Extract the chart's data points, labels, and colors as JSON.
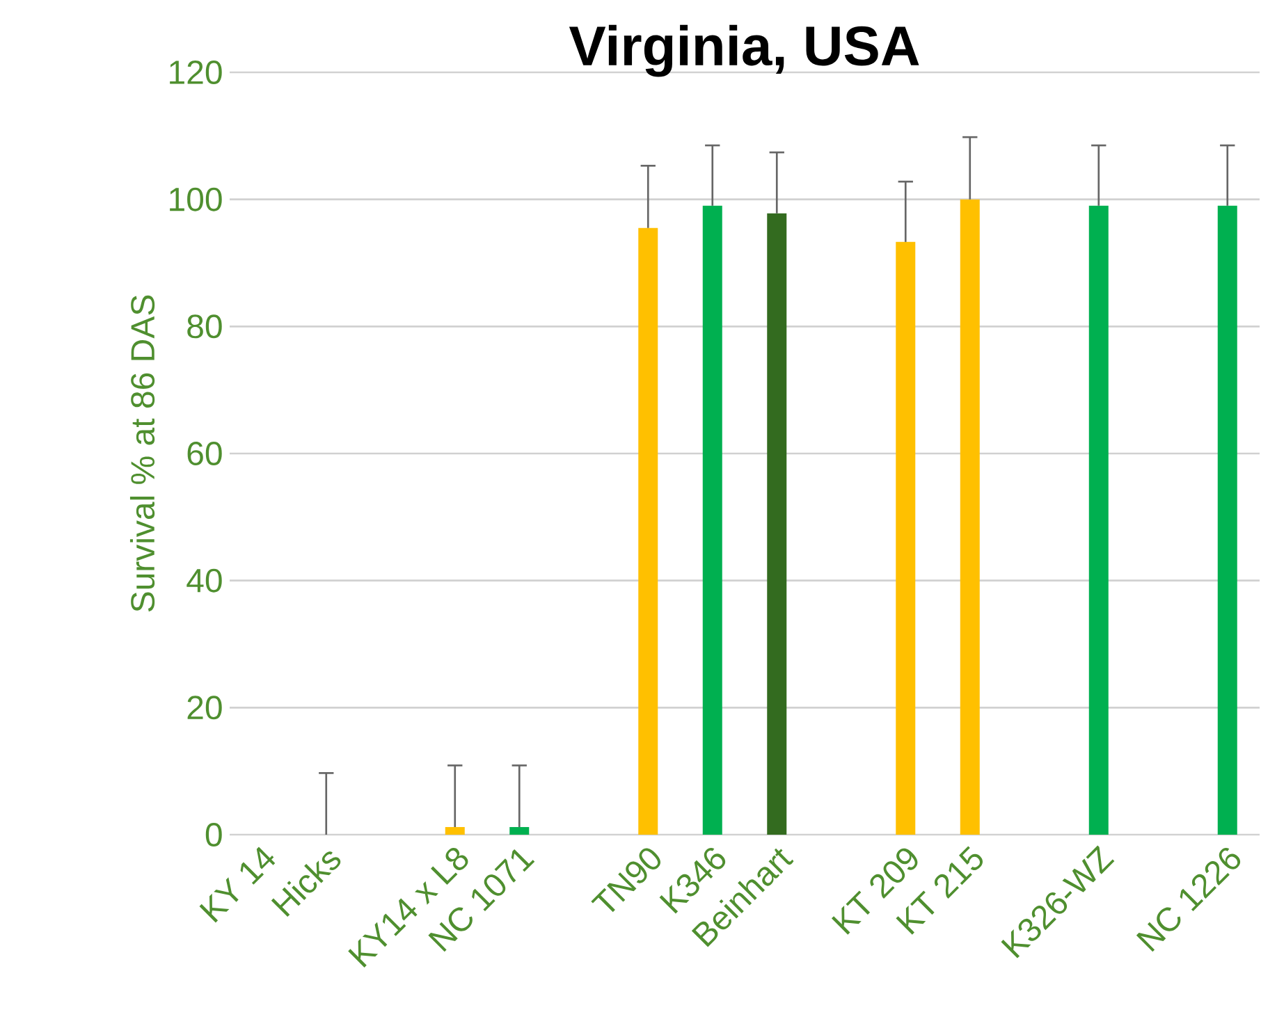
{
  "chart_data": {
    "type": "bar",
    "title": "Virginia, USA",
    "ylabel": "Survival % at 86 DAS",
    "categories": [
      "KY 14",
      "Hicks",
      null,
      "KY14 x L8",
      "NC 1071",
      null,
      "TN90",
      "K346",
      "Beinhart",
      null,
      "KT 209",
      "KT 215",
      null,
      "K326-WZ",
      null,
      "NC 1226"
    ],
    "values": [
      0,
      0,
      null,
      1.2,
      1.2,
      null,
      95.5,
      99,
      97.8,
      null,
      93.3,
      100,
      null,
      99,
      null,
      99
    ],
    "colors": [
      "#ffc000",
      "#00b050",
      "#00b050",
      "#ffc000",
      "#00b050",
      "#00b050",
      "#ffc000",
      "#00b050",
      "#336b1f",
      "#00b050",
      "#ffc000",
      "#ffc000",
      "#00b050",
      "#00b050",
      "#00b050",
      "#00b050"
    ],
    "errors": [
      null,
      [
        0,
        9.7
      ],
      null,
      [
        1.2,
        10.9
      ],
      [
        1.2,
        10.9
      ],
      null,
      [
        95.5,
        105.3
      ],
      [
        99,
        108.5
      ],
      [
        97.8,
        107.4
      ],
      null,
      [
        93.3,
        102.8
      ],
      [
        100,
        109.8
      ],
      null,
      [
        99,
        108.5
      ],
      null,
      [
        99,
        108.5
      ]
    ],
    "ylim": [
      0,
      120
    ],
    "yticks": [
      0,
      20,
      40,
      60,
      80,
      100,
      120
    ],
    "grid": "y"
  }
}
